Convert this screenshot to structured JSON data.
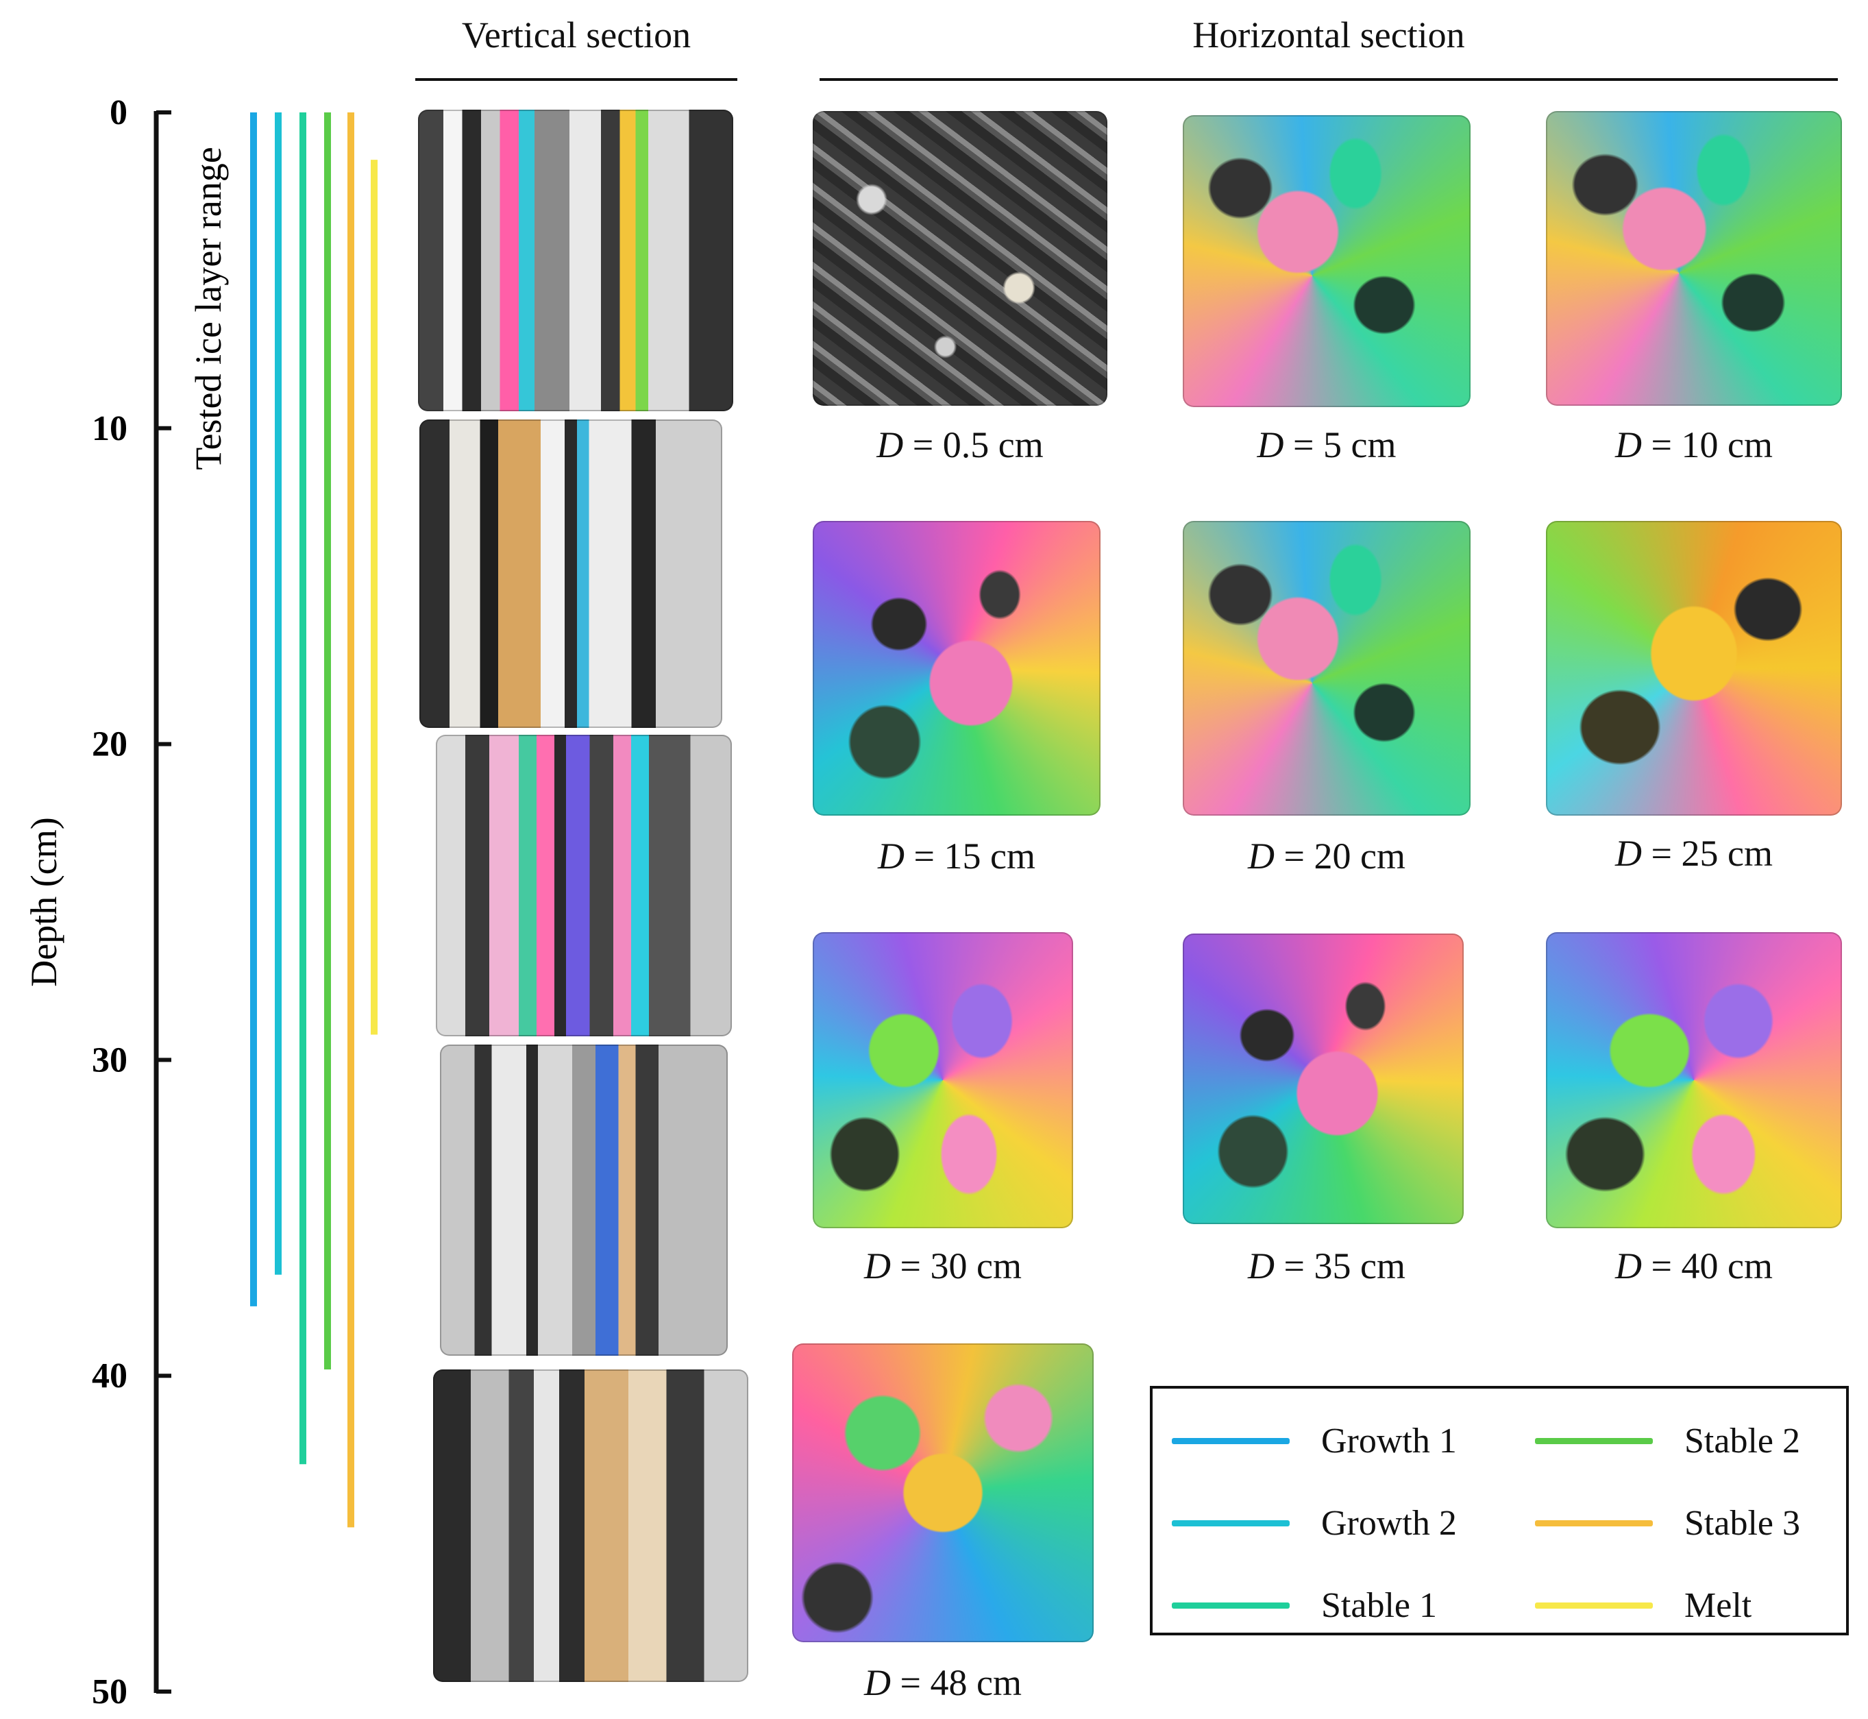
{
  "headers": {
    "vertical": "Vertical section",
    "horizontal": "Horizontal section"
  },
  "axis": {
    "label": "Depth (cm)",
    "range_label": "Tested ice layer range",
    "min": 0,
    "max": 50,
    "ticks": [
      "0",
      "10",
      "20",
      "30",
      "40",
      "50"
    ]
  },
  "ranges": [
    {
      "name": "Growth 1",
      "start": 0,
      "end": 37.8,
      "color": "#1aa7e3"
    },
    {
      "name": "Growth 2",
      "start": 0,
      "end": 36.8,
      "color": "#1cc0d4"
    },
    {
      "name": "Stable 1",
      "start": 0,
      "end": 42.8,
      "color": "#1fcf9b"
    },
    {
      "name": "Stable 2",
      "start": 0,
      "end": 39.8,
      "color": "#5acb48"
    },
    {
      "name": "Stable 3",
      "start": 0,
      "end": 44.8,
      "color": "#f5bd3c"
    },
    {
      "name": "Melt",
      "start": 1.5,
      "end": 29.2,
      "color": "#f7e84a"
    }
  ],
  "horizontal_sections": [
    {
      "var": "D",
      "eq": " = ",
      "value": "0.5 cm"
    },
    {
      "var": "D",
      "eq": " = ",
      "value": "5 cm"
    },
    {
      "var": "D",
      "eq": " = ",
      "value": "10 cm"
    },
    {
      "var": "D",
      "eq": " = ",
      "value": "15 cm"
    },
    {
      "var": "D",
      "eq": " = ",
      "value": "20 cm"
    },
    {
      "var": "D",
      "eq": " = ",
      "value": "25 cm"
    },
    {
      "var": "D",
      "eq": " = ",
      "value": "30 cm"
    },
    {
      "var": "D",
      "eq": " = ",
      "value": "35 cm"
    },
    {
      "var": "D",
      "eq": " = ",
      "value": "40 cm"
    },
    {
      "var": "D",
      "eq": " = ",
      "value": "48 cm"
    }
  ],
  "legend": [
    {
      "label": "Growth 1",
      "color": "#1aa7e3"
    },
    {
      "label": "Stable 2",
      "color": "#5acb48"
    },
    {
      "label": "Growth 2",
      "color": "#1cc0d4"
    },
    {
      "label": "Stable 3",
      "color": "#f5bd3c"
    },
    {
      "label": "Stable 1",
      "color": "#1fcf9b"
    },
    {
      "label": "Melt",
      "color": "#f7e84a"
    }
  ]
}
